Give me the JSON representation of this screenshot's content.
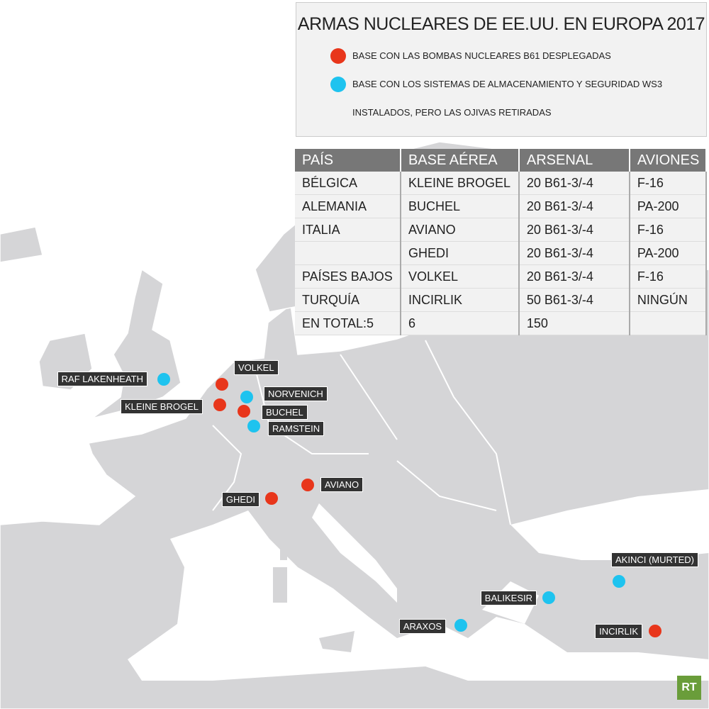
{
  "title": "ARMAS NUCLEARES DE EE.UU. EN EUROPA 2017",
  "legend": [
    {
      "label": "BASE CON LAS BOMBAS NUCLEARES B61 DESPLEGADAS",
      "color": "#e8361b",
      "bases": [
        "VOLKEL",
        "KLEINE BROGEL",
        "BUCHEL",
        "AVIANO",
        "GHEDI",
        "INCIRLIK"
      ]
    },
    {
      "label": "BASE CON LOS SISTEMAS DE ALMACENAMIENTO Y SEGURIDAD WS3 INSTALADOS, PERO LAS OJIVAS RETIRADAS",
      "color": "#1ec3ef",
      "bases": [
        "RAF LAKENHEATH",
        "NORVENICH",
        "RAMSTEIN",
        "AKINCI (MURTED)",
        "BALIKESIR",
        "ARAXOS"
      ]
    }
  ],
  "table": {
    "header": [
      "PAÍS",
      "BASE AÉREA",
      "ARSENAL",
      "AVIONES"
    ],
    "rows": [
      [
        "BÉLGICA",
        "KLEINE BROGEL",
        "20 B61-3/-4",
        "F-16"
      ],
      [
        "ALEMANIA",
        "BUCHEL",
        "20 B61-3/-4",
        "PA-200"
      ],
      [
        "ITALIA",
        "AVIANO",
        "20 B61-3/-4",
        "F-16"
      ],
      [
        null,
        "GHEDI",
        "20 B61-3/-4",
        "PA-200"
      ],
      [
        "PAÍSES BAJOS",
        "VOLKEL",
        "20 B61-3/-4",
        "F-16"
      ],
      [
        "TURQUÍA",
        "INCIRLIK",
        "50 B61-3/-4",
        "NINGÚN"
      ],
      [
        "EN TOTAL:5",
        "6",
        "150",
        null
      ]
    ]
  },
  "logo": "RT"
}
